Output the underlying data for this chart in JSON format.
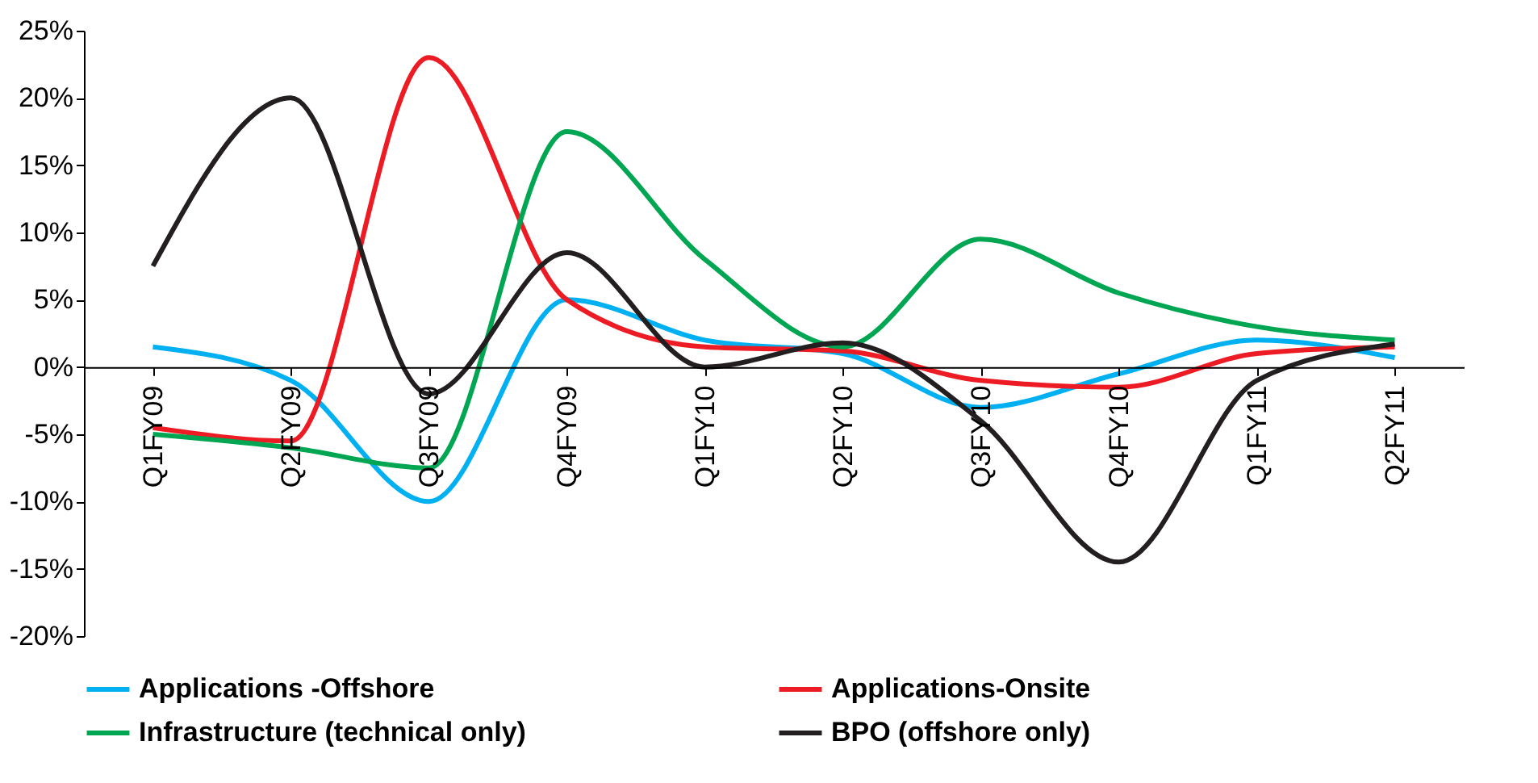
{
  "chart_data": {
    "type": "line",
    "categories": [
      "Q1FY09",
      "Q2FY09",
      "Q3FY09",
      "Q4FY09",
      "Q1FY10",
      "Q2FY10",
      "Q3FY10",
      "Q4FY10",
      "Q1FY11",
      "Q2FY11"
    ],
    "series": [
      {
        "name": "Applications -Offshore",
        "color": "#00b0f0",
        "values": [
          1.5,
          -1,
          -10,
          5,
          2,
          1,
          -3,
          -0.5,
          2,
          0.7
        ]
      },
      {
        "name": "Applications-Onsite",
        "color": "#ed1c24",
        "values": [
          -4.5,
          -5.5,
          23,
          5,
          1.5,
          1.2,
          -1,
          -1.5,
          1,
          1.5
        ]
      },
      {
        "name": "Infrastructure (technical only)",
        "color": "#00a651",
        "values": [
          -5,
          -6,
          -7.5,
          17.5,
          8,
          1.5,
          9.5,
          5.5,
          3,
          2
        ]
      },
      {
        "name": "BPO (offshore only)",
        "color": "#231f20",
        "values": [
          7.5,
          20,
          -2,
          8.5,
          0,
          1.8,
          -4,
          -14.5,
          -1,
          1.7
        ]
      }
    ],
    "ylim": [
      -20,
      25
    ],
    "yticks": [
      {
        "value": -20,
        "label": "-20%"
      },
      {
        "value": -15,
        "label": "-15%"
      },
      {
        "value": -10,
        "label": "-10%"
      },
      {
        "value": -5,
        "label": "-5%"
      },
      {
        "value": 0,
        "label": "0%"
      },
      {
        "value": 5,
        "label": "5%"
      },
      {
        "value": 10,
        "label": "10%"
      },
      {
        "value": 15,
        "label": "15%"
      },
      {
        "value": 20,
        "label": "20%"
      },
      {
        "value": 25,
        "label": "25%"
      }
    ],
    "grid": false,
    "legend": "bottom",
    "marker": "none",
    "line_style": "solid"
  }
}
